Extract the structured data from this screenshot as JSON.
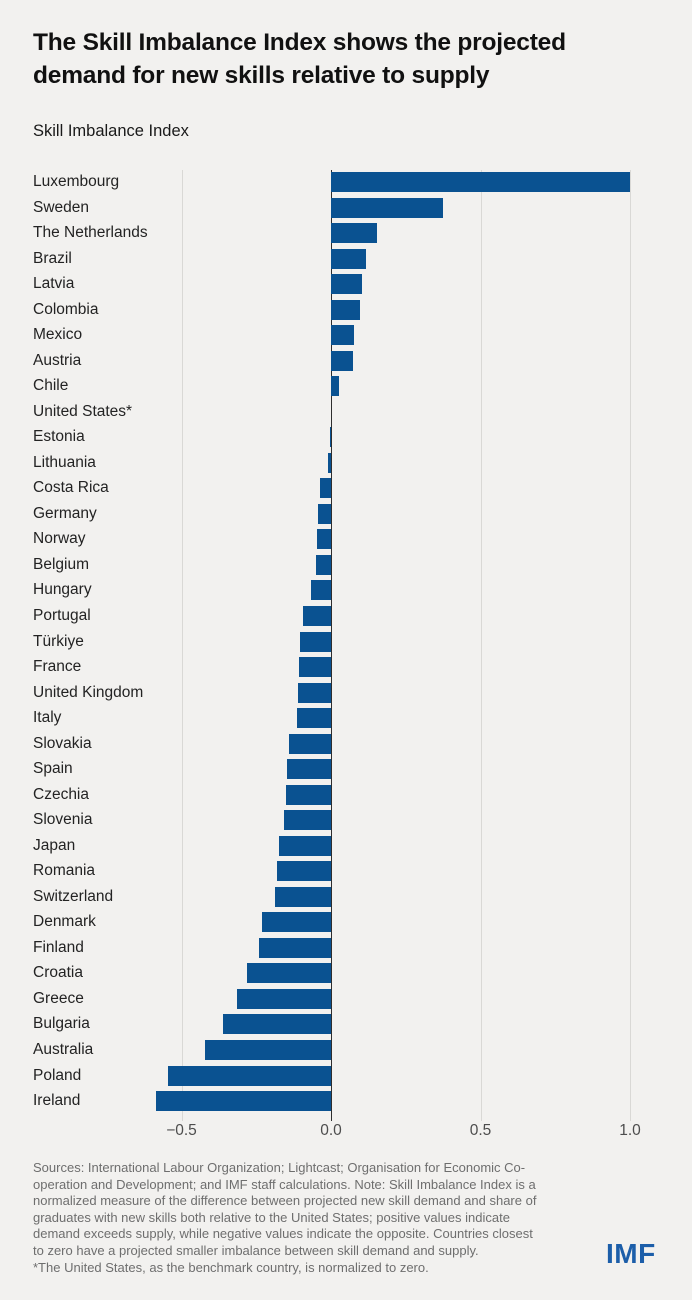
{
  "page": {
    "title_lines": [
      "The Skill Imbalance Index shows the projected",
      "demand for new skills relative to supply"
    ],
    "subtitle": "Skill Imbalance Index",
    "logo": "IMF"
  },
  "footer": {
    "lines": [
      "Sources: International Labour Organization; Lightcast; Organisation for Economic Co-",
      "operation and Development; and IMF staff calculations. Note: Skill Imbalance Index is a",
      "normalized measure of the difference between projected new skill demand and share of",
      "graduates with new skills both relative to the United States; positive values indicate",
      "demand exceeds supply, while negative values indicate the opposite. Countries closest",
      "to zero have a projected smaller imbalance between skill demand and supply.",
      "*The United States, as the benchmark country, is normalized to zero."
    ]
  },
  "chart_data": {
    "type": "bar",
    "orientation": "horizontal",
    "title": "Skill Imbalance Index",
    "xlabel": "",
    "ylabel": "",
    "xlim": [
      -0.65,
      1.05
    ],
    "xticks": [
      -0.5,
      0.0,
      0.5,
      1.0
    ],
    "xtick_labels": [
      "−0.5",
      "0.0",
      "0.5",
      "1.0"
    ],
    "grid": "vertical",
    "legend": "none",
    "bar_color": "#0a5291",
    "categories": [
      "Luxembourg",
      "Sweden",
      "The Netherlands",
      "Brazil",
      "Latvia",
      "Colombia",
      "Mexico",
      "Austria",
      "Chile",
      "United States*",
      "Estonia",
      "Lithuania",
      "Costa Rica",
      "Germany",
      "Norway",
      "Belgium",
      "Hungary",
      "Portugal",
      "Türkiye",
      "France",
      "United Kingdom",
      "Italy",
      "Slovakia",
      "Spain",
      "Czechia",
      "Slovenia",
      "Japan",
      "Romania",
      "Switzerland",
      "Denmark",
      "Finland",
      "Croatia",
      "Greece",
      "Bulgaria",
      "Australia",
      "Poland",
      "Ireland"
    ],
    "values": [
      1.0,
      0.376,
      0.155,
      0.118,
      0.103,
      0.097,
      0.078,
      0.073,
      0.027,
      0.0,
      -0.003,
      -0.01,
      -0.037,
      -0.042,
      -0.046,
      -0.05,
      -0.066,
      -0.095,
      -0.103,
      -0.108,
      -0.11,
      -0.114,
      -0.142,
      -0.147,
      -0.15,
      -0.157,
      -0.173,
      -0.182,
      -0.186,
      -0.23,
      -0.24,
      -0.28,
      -0.313,
      -0.36,
      -0.42,
      -0.546,
      -0.585
    ]
  },
  "colors": {
    "background": "#f2f1ef",
    "bar": "#0a5291",
    "gridline": "#d9d8d5",
    "zero_line": "#2e2e2e",
    "logo_blue": "#1c5ea9",
    "footer_text": "#6e6e6e"
  }
}
